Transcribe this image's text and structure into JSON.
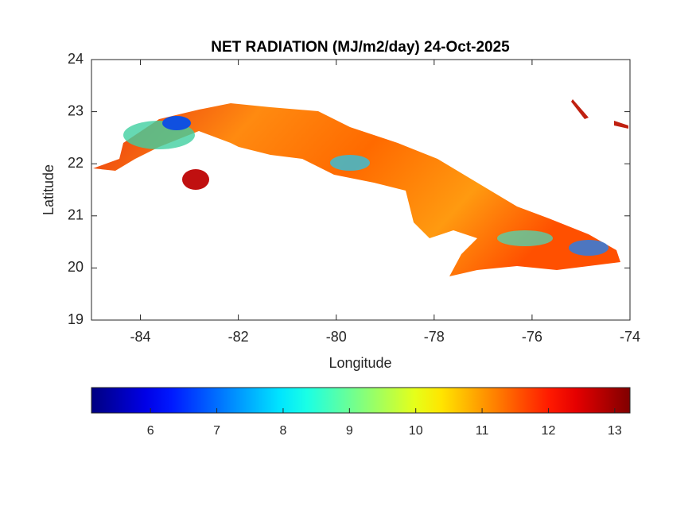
{
  "chart_data": {
    "type": "map",
    "title": "NET RADIATION (MJ/m2/day) 24-Oct-2025",
    "xlabel": "Longitude",
    "ylabel": "Latitude",
    "xlim": [
      -85,
      -74
    ],
    "xticks": [
      -84,
      -82,
      -80,
      -78,
      -76,
      -74
    ],
    "ylim": [
      19,
      24
    ],
    "yticks": [
      19,
      20,
      21,
      22,
      23,
      24
    ],
    "colormap": "jet",
    "clim": [
      5.11,
      13.23
    ],
    "cticks": [
      6,
      7,
      8,
      9,
      10,
      11,
      12,
      13
    ]
  }
}
